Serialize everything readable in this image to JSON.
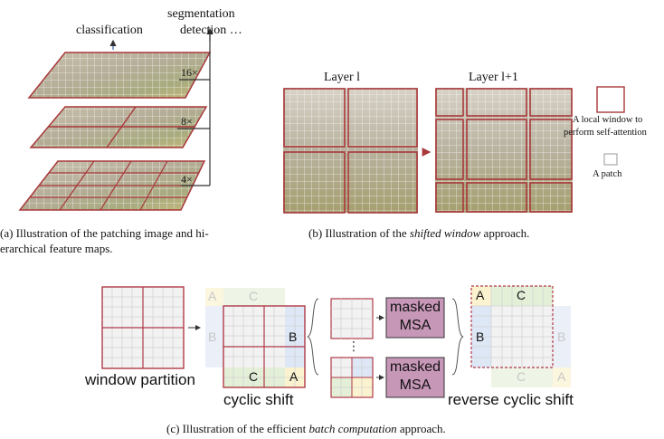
{
  "panel_a": {
    "label_classification": "classification",
    "label_segmentation": "segmentation",
    "label_detection": "detection …",
    "scale_16": "16×",
    "scale_8": "8×",
    "scale_4": "4×",
    "caption_line1": "(a) Illustration of the patching image and hi-",
    "caption_line2": "erarchical feature maps."
  },
  "panel_b": {
    "layer_l": "Layer l",
    "layer_l1": "Layer l+1",
    "legend_window_1": "A local window to",
    "legend_window_2": "perform self-attention",
    "legend_patch": "A patch",
    "caption_prefix": "(b) Illustration of the ",
    "caption_italic": "shifted window",
    "caption_suffix": " approach."
  },
  "panel_c": {
    "window_partition": "window partition",
    "cyclic_shift": "cyclic shift",
    "reverse_cyclic_shift": "reverse cyclic shift",
    "masked_1": "masked",
    "msa_1": "MSA",
    "masked_2": "masked",
    "msa_2": "MSA",
    "letter_a": "A",
    "letter_b": "B",
    "letter_c": "C",
    "dots": "⋮",
    "caption_prefix": "(c) Illustration of the efficient ",
    "caption_italic": "batch computation",
    "caption_suffix": " approach."
  },
  "colors": {
    "window_border": "#a8383a",
    "msa_fill": "#c797b8",
    "region_a": "#fbf3cf",
    "region_b": "#dde7f6",
    "region_c": "#e3efd6",
    "arrow_blue": "#3b5fc0"
  }
}
